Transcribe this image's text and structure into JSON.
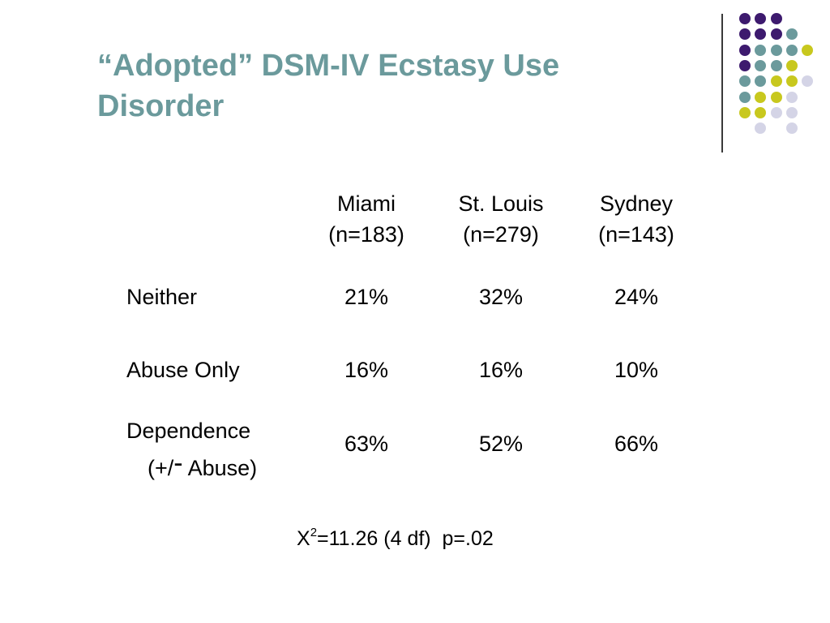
{
  "slide": {
    "title_line1": "“Adopted” DSM-IV Ecstasy Use",
    "title_line2": "Disorder",
    "colors": {
      "title": "#6b9a9c",
      "purple": "#3d1a6e",
      "teal": "#6b9a9c",
      "yellow": "#c8c81e",
      "lavender": "#d4d4e6"
    }
  },
  "table": {
    "columns": [
      {
        "name": "Miami",
        "n": "(n=183)"
      },
      {
        "name": "St. Louis",
        "n": "(n=279)"
      },
      {
        "name": "Sydney",
        "n": "(n=143)"
      }
    ],
    "rows": [
      {
        "label": "Neither",
        "values": [
          "21%",
          "32%",
          "24%"
        ]
      },
      {
        "label": "Abuse Only",
        "values": [
          "16%",
          "16%",
          "10%"
        ]
      },
      {
        "label": "Dependence",
        "label_sub_open": "(+/",
        "label_sub_dash": "-",
        "label_sub_close": " Abuse)",
        "values": [
          "63%",
          "52%",
          "66%"
        ]
      }
    ]
  },
  "statistic": {
    "symbol": "X",
    "superscript": "2",
    "text": "=11.26 (4 df)  p=.02"
  }
}
